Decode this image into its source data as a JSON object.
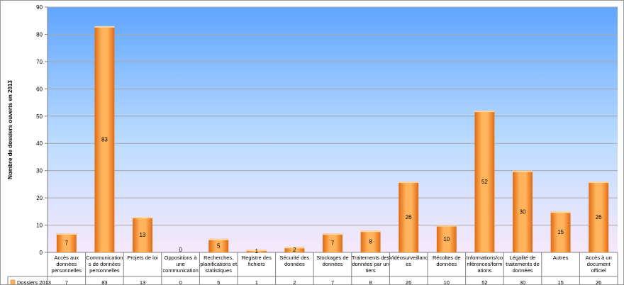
{
  "chart_data": {
    "type": "bar",
    "ylabel": "Nombre de dossiers ouverts en 2013",
    "ylim": [
      0,
      90
    ],
    "yticks": [
      0,
      10,
      20,
      30,
      40,
      50,
      60,
      70,
      80,
      90
    ],
    "grid": true,
    "legend_position": "bottom-left (data table)",
    "categories": [
      [
        "Accès aux",
        "données",
        "personnelles"
      ],
      [
        "Communication",
        "s de données",
        "personnelles"
      ],
      [
        "Projets de loi"
      ],
      [
        "Oppositions à",
        "une",
        "communication"
      ],
      [
        "Recherches,",
        "planifications et",
        "statistiques"
      ],
      [
        "Registre des",
        "fichiers"
      ],
      [
        "Sécurité des",
        "données"
      ],
      [
        "Stockages de",
        "données"
      ],
      [
        "Traitements des",
        "données par un",
        "tiers"
      ],
      [
        "Vidéosurveillanc",
        "es"
      ],
      [
        "Récoltes de",
        "données"
      ],
      [
        "Informations/co",
        "nférences/form",
        "ations"
      ],
      [
        "Légalité de",
        "traitements de",
        "données"
      ],
      [
        "Autres"
      ],
      [
        "Accès à un",
        "document",
        "officiel"
      ]
    ],
    "series": [
      {
        "name": "Dossiers 2013",
        "values": [
          7,
          83,
          13,
          0,
          5,
          1,
          2,
          7,
          8,
          26,
          10,
          52,
          30,
          15,
          26
        ]
      }
    ],
    "colors": {
      "bar_light": "#ffb35c",
      "bar_dark": "#e06a10",
      "bar_top": "#fcd9a8",
      "bg_top": "#60a5ff",
      "bg_mid": "#bcdcff",
      "bg_bottom": "#f7e8fb",
      "grid": "#a8a8a8"
    }
  }
}
